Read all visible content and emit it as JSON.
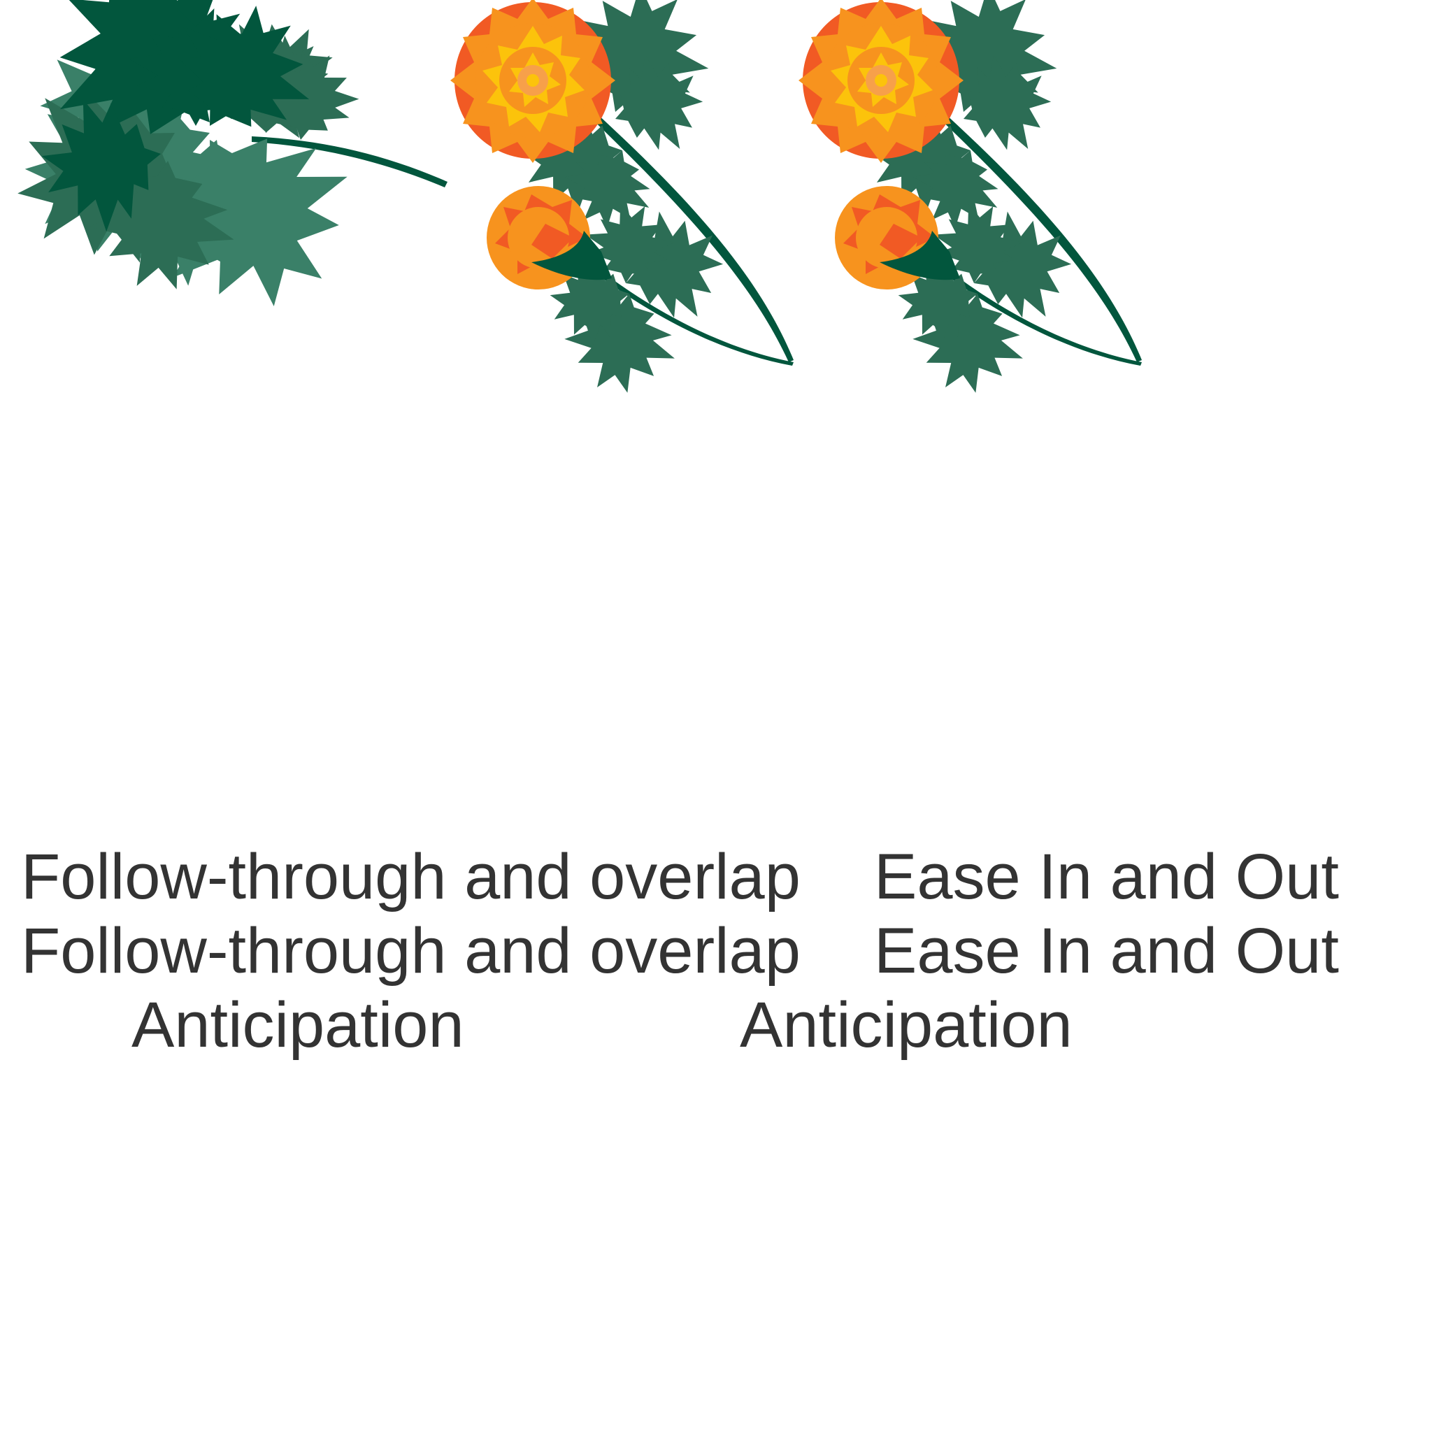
{
  "captions": {
    "row1_left": "Follow-through and overlap",
    "row1_right": "Ease In and Out",
    "row2_left": "Follow-through and overlap",
    "row2_right": "Ease In and Out",
    "row3_left": "Anticipation",
    "row3_right": "Anticipation"
  },
  "colors": {
    "leaf_dark": "#02563d",
    "leaf_mid": "#2c6d55",
    "leaf_light": "#3a8068",
    "petal_orange": "#f7931e",
    "petal_deep": "#f15a24",
    "petal_yellow": "#fcc30b",
    "center": "#f7a04a",
    "text": "#333333"
  },
  "icons": {
    "leaf_sprig": "maple-leaf-sprig-icon",
    "flower_group_a": "marigold-flower-icon",
    "flower_group_b": "marigold-flower-icon"
  }
}
